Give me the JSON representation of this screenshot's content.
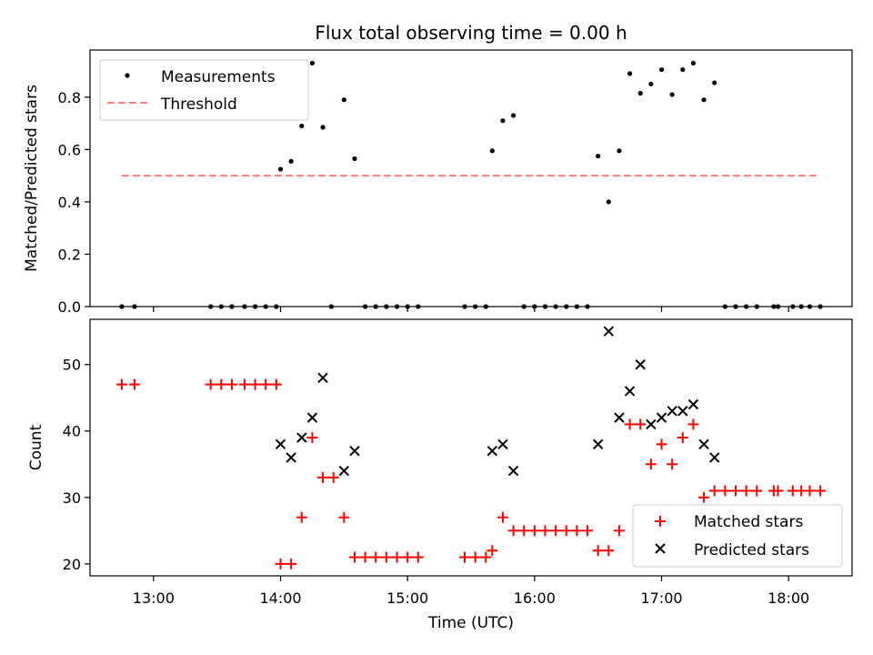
{
  "chart_data": [
    {
      "type": "scatter",
      "title": "Flux total observing time = 0.00 h",
      "xlabel": "",
      "ylabel": "Matched/Predicted stars",
      "ylim": [
        0,
        0.98
      ],
      "yticks": [
        0.0,
        0.2,
        0.4,
        0.6,
        0.8
      ],
      "ytick_labels": [
        "0.0",
        "0.2",
        "0.4",
        "0.6",
        "0.8"
      ],
      "xlim": [
        "12:30",
        "18:30"
      ],
      "legend": {
        "placement": "top-left",
        "entries": [
          "Measurements",
          "Threshold"
        ]
      },
      "threshold": {
        "name": "Threshold",
        "value": 0.5,
        "x_start": "12:45",
        "x_end": "18:15",
        "color": "#ff7f7f"
      },
      "series": [
        {
          "name": "Measurements",
          "color": "#000000",
          "points": [
            [
              "12:45",
              0
            ],
            [
              "12:51",
              0
            ],
            [
              "13:27",
              0
            ],
            [
              "13:32",
              0
            ],
            [
              "13:37",
              0
            ],
            [
              "13:43",
              0
            ],
            [
              "13:48",
              0
            ],
            [
              "13:53",
              0
            ],
            [
              "13:58",
              0
            ],
            [
              "14:00",
              0.525
            ],
            [
              "14:05",
              0.555
            ],
            [
              "14:10",
              0.69
            ],
            [
              "14:15",
              0.93
            ],
            [
              "14:20",
              0.685
            ],
            [
              "14:24",
              0
            ],
            [
              "14:30",
              0.79
            ],
            [
              "14:35",
              0.565
            ],
            [
              "14:40",
              0
            ],
            [
              "14:45",
              0
            ],
            [
              "14:50",
              0
            ],
            [
              "14:55",
              0
            ],
            [
              "15:00",
              0
            ],
            [
              "15:05",
              0
            ],
            [
              "15:27",
              0
            ],
            [
              "15:32",
              0
            ],
            [
              "15:37",
              0
            ],
            [
              "15:40",
              0.595
            ],
            [
              "15:45",
              0.71
            ],
            [
              "15:50",
              0.73
            ],
            [
              "15:55",
              0
            ],
            [
              "16:00",
              0
            ],
            [
              "16:05",
              0
            ],
            [
              "16:10",
              0
            ],
            [
              "16:15",
              0
            ],
            [
              "16:20",
              0
            ],
            [
              "16:25",
              0
            ],
            [
              "16:30",
              0.575
            ],
            [
              "16:35",
              0.4
            ],
            [
              "16:40",
              0.595
            ],
            [
              "16:45",
              0.89
            ],
            [
              "16:50",
              0.815
            ],
            [
              "16:55",
              0.85
            ],
            [
              "17:00",
              0.905
            ],
            [
              "17:05",
              0.81
            ],
            [
              "17:10",
              0.905
            ],
            [
              "17:15",
              0.93
            ],
            [
              "17:20",
              0.79
            ],
            [
              "17:25",
              0.855
            ],
            [
              "17:30",
              0
            ],
            [
              "17:35",
              0
            ],
            [
              "17:40",
              0
            ],
            [
              "17:45",
              0
            ],
            [
              "17:53",
              0
            ],
            [
              "17:55",
              0
            ],
            [
              "18:02",
              0
            ],
            [
              "18:06",
              0
            ],
            [
              "18:10",
              0
            ],
            [
              "18:15",
              0
            ]
          ]
        }
      ]
    },
    {
      "type": "scatter",
      "title": "",
      "xlabel": "Time (UTC)",
      "ylabel": "Count",
      "ylim": [
        18.2,
        56.8
      ],
      "yticks": [
        20,
        30,
        40,
        50
      ],
      "ytick_labels": [
        "20",
        "30",
        "40",
        "50"
      ],
      "xlim": [
        "12:30",
        "18:30"
      ],
      "xticks": [
        "13:00",
        "14:00",
        "15:00",
        "16:00",
        "17:00",
        "18:00"
      ],
      "xtick_labels": [
        "13:00",
        "14:00",
        "15:00",
        "16:00",
        "17:00",
        "18:00"
      ],
      "legend": {
        "placement": "bottom-right",
        "entries": [
          "Matched stars",
          "Predicted stars"
        ]
      },
      "series": [
        {
          "name": "Matched stars",
          "marker": "+",
          "color": "#ff0000",
          "points": [
            [
              "12:45",
              47
            ],
            [
              "12:51",
              47
            ],
            [
              "13:27",
              47
            ],
            [
              "13:32",
              47
            ],
            [
              "13:37",
              47
            ],
            [
              "13:43",
              47
            ],
            [
              "13:48",
              47
            ],
            [
              "13:53",
              47
            ],
            [
              "13:58",
              47
            ],
            [
              "14:00",
              20
            ],
            [
              "14:05",
              20
            ],
            [
              "14:10",
              27
            ],
            [
              "14:15",
              39
            ],
            [
              "14:20",
              33
            ],
            [
              "14:25",
              33
            ],
            [
              "14:30",
              27
            ],
            [
              "14:35",
              21
            ],
            [
              "14:40",
              21
            ],
            [
              "14:45",
              21
            ],
            [
              "14:50",
              21
            ],
            [
              "14:55",
              21
            ],
            [
              "15:00",
              21
            ],
            [
              "15:05",
              21
            ],
            [
              "15:27",
              21
            ],
            [
              "15:32",
              21
            ],
            [
              "15:37",
              21
            ],
            [
              "15:40",
              22
            ],
            [
              "15:45",
              27
            ],
            [
              "15:50",
              25
            ],
            [
              "15:55",
              25
            ],
            [
              "16:00",
              25
            ],
            [
              "16:05",
              25
            ],
            [
              "16:10",
              25
            ],
            [
              "16:15",
              25
            ],
            [
              "16:20",
              25
            ],
            [
              "16:25",
              25
            ],
            [
              "16:30",
              22
            ],
            [
              "16:35",
              22
            ],
            [
              "16:40",
              25
            ],
            [
              "16:45",
              41
            ],
            [
              "16:50",
              41
            ],
            [
              "16:55",
              35
            ],
            [
              "17:00",
              38
            ],
            [
              "17:05",
              35
            ],
            [
              "17:10",
              39
            ],
            [
              "17:15",
              41
            ],
            [
              "17:20",
              30
            ],
            [
              "17:25",
              31
            ],
            [
              "17:30",
              31
            ],
            [
              "17:35",
              31
            ],
            [
              "17:40",
              31
            ],
            [
              "17:45",
              31
            ],
            [
              "17:53",
              31
            ],
            [
              "17:55",
              31
            ],
            [
              "18:02",
              31
            ],
            [
              "18:06",
              31
            ],
            [
              "18:10",
              31
            ],
            [
              "18:15",
              31
            ]
          ]
        },
        {
          "name": "Predicted stars",
          "marker": "x",
          "color": "#000000",
          "points": [
            [
              "14:00",
              38
            ],
            [
              "14:05",
              36
            ],
            [
              "14:10",
              39
            ],
            [
              "14:15",
              42
            ],
            [
              "14:20",
              48
            ],
            [
              "14:30",
              34
            ],
            [
              "14:35",
              37
            ],
            [
              "15:40",
              37
            ],
            [
              "15:45",
              38
            ],
            [
              "15:50",
              34
            ],
            [
              "16:30",
              38
            ],
            [
              "16:35",
              55
            ],
            [
              "16:40",
              42
            ],
            [
              "16:45",
              46
            ],
            [
              "16:50",
              50
            ],
            [
              "16:55",
              41
            ],
            [
              "17:00",
              42
            ],
            [
              "17:05",
              43
            ],
            [
              "17:10",
              43
            ],
            [
              "17:15",
              44
            ],
            [
              "17:20",
              38
            ],
            [
              "17:25",
              36
            ]
          ]
        }
      ]
    }
  ]
}
